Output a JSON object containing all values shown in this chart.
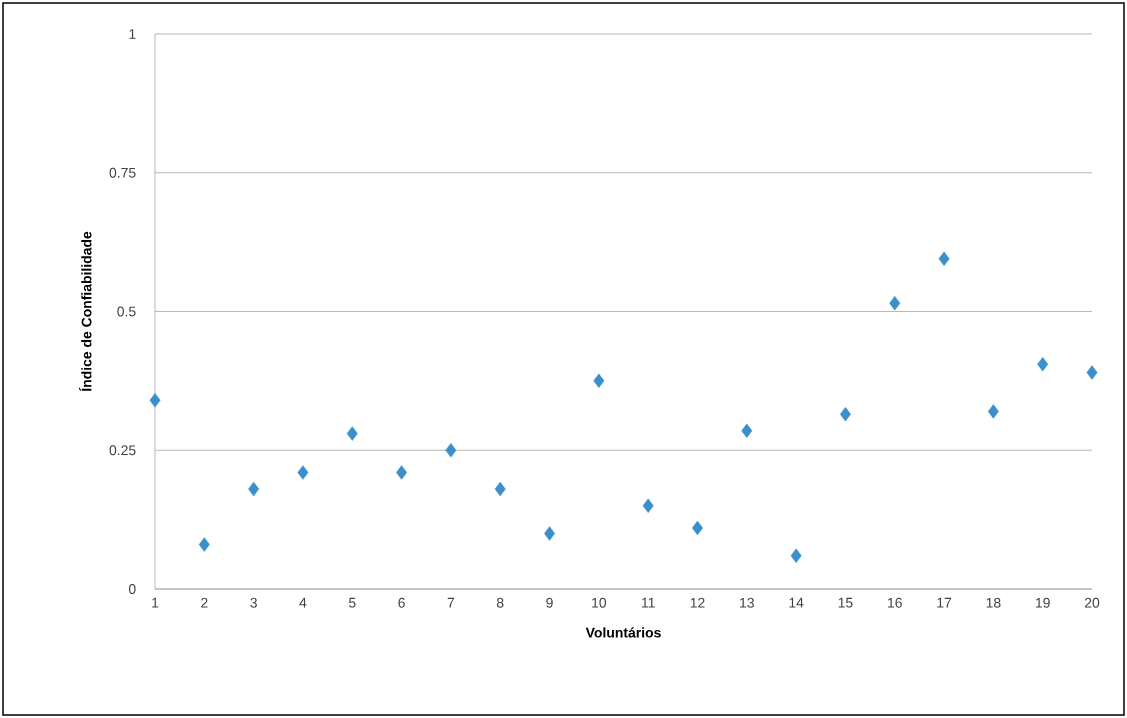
{
  "chart_data": {
    "type": "scatter",
    "xlabel": "Voluntários",
    "ylabel": "Índice de Confiabilidade",
    "x": [
      1,
      2,
      3,
      4,
      5,
      6,
      7,
      8,
      9,
      10,
      11,
      12,
      13,
      14,
      15,
      16,
      17,
      18,
      19,
      20
    ],
    "values": [
      0.34,
      0.08,
      0.18,
      0.21,
      0.28,
      0.21,
      0.25,
      0.18,
      0.1,
      0.375,
      0.15,
      0.11,
      0.285,
      0.06,
      0.315,
      0.515,
      0.595,
      0.32,
      0.405,
      0.39
    ],
    "color": "#3b8fcb",
    "marker": "diamond",
    "xlim": [
      1,
      20
    ],
    "xticks": [
      1,
      2,
      3,
      4,
      5,
      6,
      7,
      8,
      9,
      10,
      11,
      12,
      13,
      14,
      15,
      16,
      17,
      18,
      19,
      20
    ],
    "ylim": [
      0,
      1
    ],
    "yticks": [
      0,
      0.25,
      0.5,
      0.75,
      1
    ],
    "grid": "y"
  }
}
